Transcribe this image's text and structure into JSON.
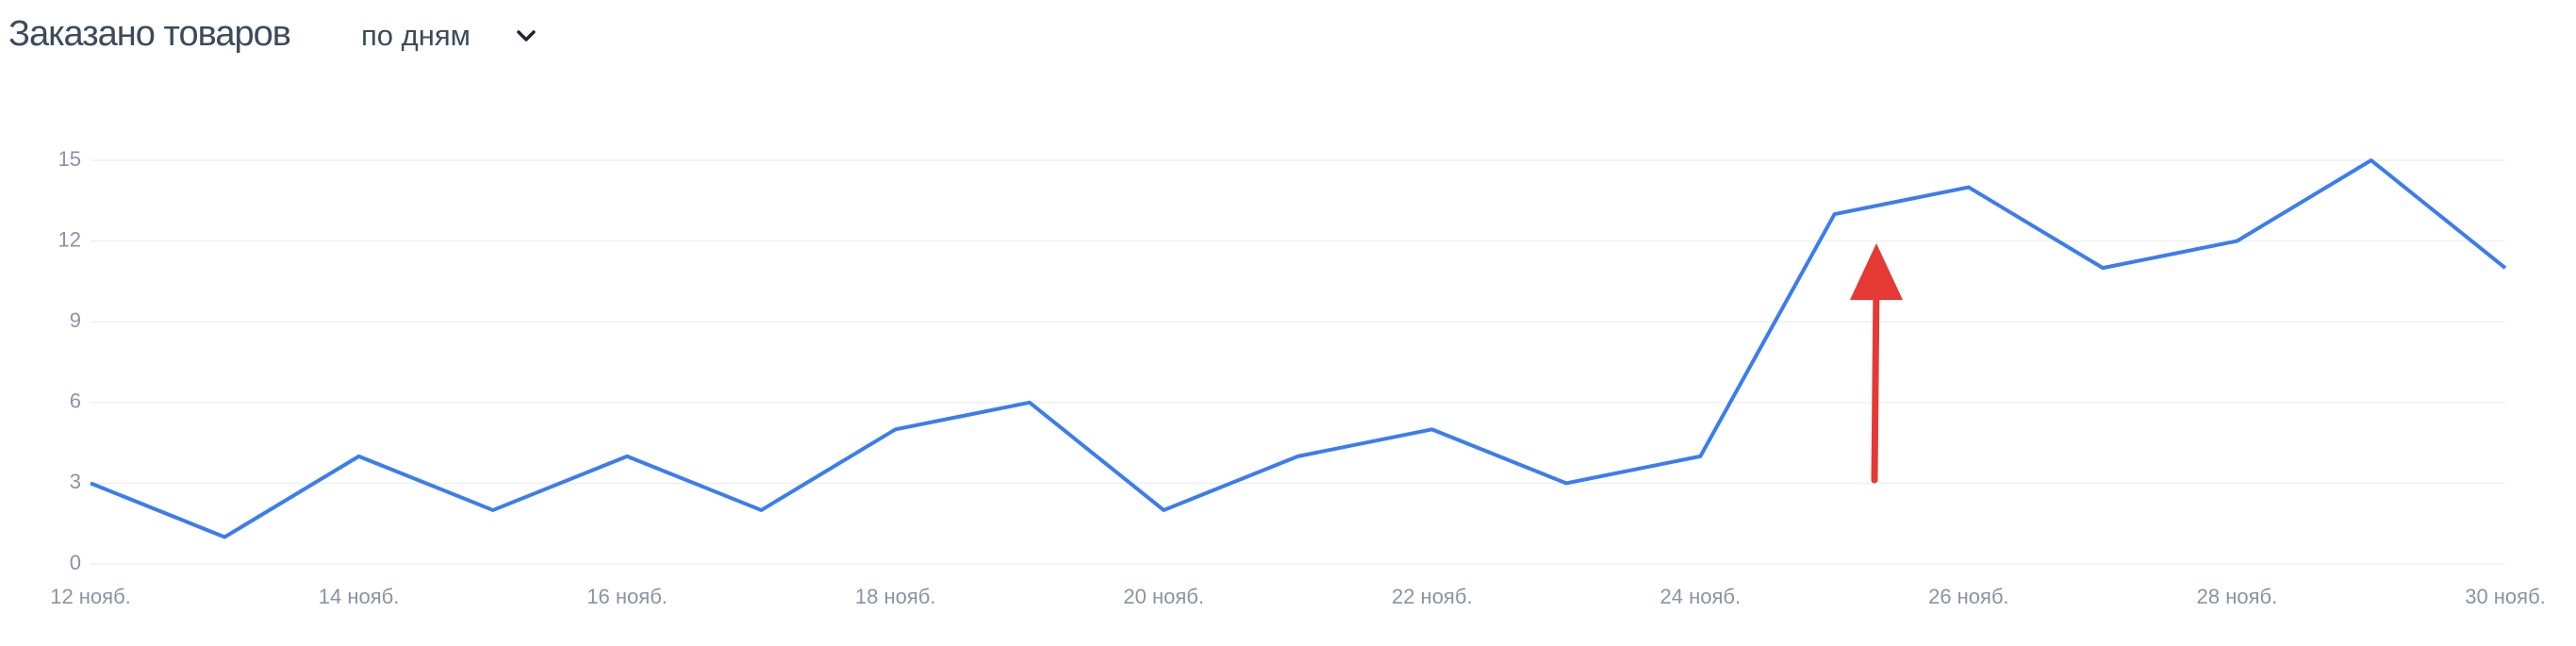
{
  "controls": {
    "period": "по дням"
  },
  "chart_data": {
    "type": "line",
    "title": "Заказано товаров",
    "categories": [
      "12 нояб.",
      null,
      "14 нояб.",
      null,
      "16 нояб.",
      null,
      "18 нояб.",
      null,
      "20 нояб.",
      null,
      "22 нояб.",
      null,
      "24 нояб.",
      null,
      "26 нояб.",
      null,
      "28 нояб.",
      null,
      "30 нояб."
    ],
    "values": [
      3,
      1,
      4,
      2,
      4,
      2,
      5,
      6,
      2,
      4,
      5,
      3,
      4,
      13,
      14,
      11,
      12,
      15,
      11
    ],
    "color": "#3b7cf0",
    "ylim": [
      0,
      15
    ],
    "yticks": [
      0,
      3,
      6,
      9,
      12,
      15
    ],
    "grid": true
  }
}
